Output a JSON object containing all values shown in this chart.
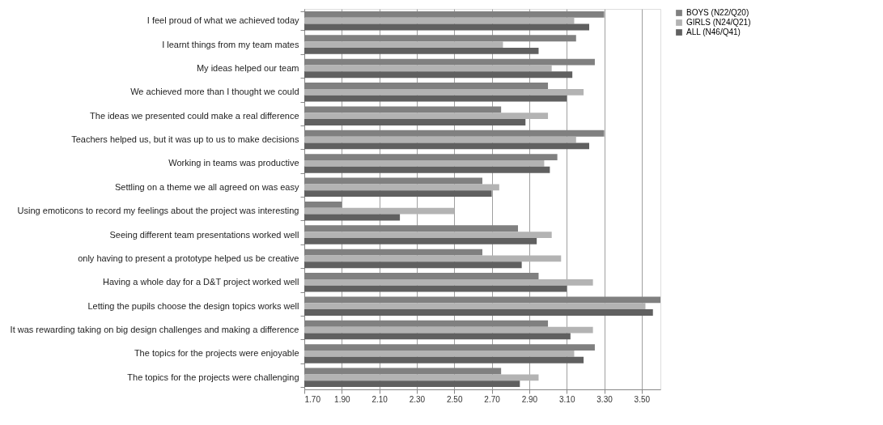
{
  "chart_data": {
    "type": "bar",
    "orientation": "horizontal",
    "categories": [
      "I feel proud of what we achieved today",
      "I learnt things from my team mates",
      "My ideas helped our team",
      "We achieved more than I thought we could",
      "The ideas we presented could make a real difference",
      "Teachers helped us, but it was up to us to make decisions",
      "Working in teams was productive",
      "Settling on a theme we all agreed on was easy",
      "Using emoticons to record my feelings about the project was interesting",
      "Seeing different team presentations worked well",
      "only having to present a prototype helped us be creative",
      "Having a whole day for a D&T project worked well",
      "Letting the pupils choose the design topics works well",
      "It was rewarding taking on big design challenges and  making a  difference",
      "The topics for the projects were enjoyable",
      "The topics for the projects were challenging"
    ],
    "series": [
      {
        "name": "BOYS (N22/Q20)",
        "color": "#808080",
        "values": [
          3.3,
          3.15,
          3.25,
          3.0,
          2.75,
          3.3,
          3.05,
          2.65,
          1.9,
          2.84,
          2.65,
          2.95,
          3.6,
          3.0,
          3.25,
          2.75
        ]
      },
      {
        "name": "GIRLS (N24/Q21)",
        "color": "#b3b3b3",
        "values": [
          3.14,
          2.76,
          3.02,
          3.19,
          3.0,
          3.15,
          2.98,
          2.74,
          2.5,
          3.02,
          3.07,
          3.24,
          3.52,
          3.24,
          3.14,
          2.95
        ]
      },
      {
        "name": "ALL (N46/Q41)",
        "color": "#606060",
        "values": [
          3.22,
          2.95,
          3.13,
          3.1,
          2.88,
          3.22,
          3.01,
          2.7,
          2.21,
          2.94,
          2.86,
          3.1,
          3.56,
          3.12,
          3.19,
          2.85
        ]
      }
    ],
    "xlim": [
      1.7,
      3.6
    ],
    "xticks": [
      {
        "value": 1.7,
        "label": "1.70"
      },
      {
        "value": 1.9,
        "label": "1.90"
      },
      {
        "value": 2.1,
        "label": "2.10"
      },
      {
        "value": 2.3,
        "label": "2.30"
      },
      {
        "value": 2.5,
        "label": "2.50"
      },
      {
        "value": 2.7,
        "label": "2.70"
      },
      {
        "value": 2.9,
        "label": "2.90"
      },
      {
        "value": 3.1,
        "label": "3.10"
      },
      {
        "value": 3.3,
        "label": "3.30"
      },
      {
        "value": 3.5,
        "label": "3.50"
      }
    ],
    "grid": "x",
    "legend": "right"
  }
}
